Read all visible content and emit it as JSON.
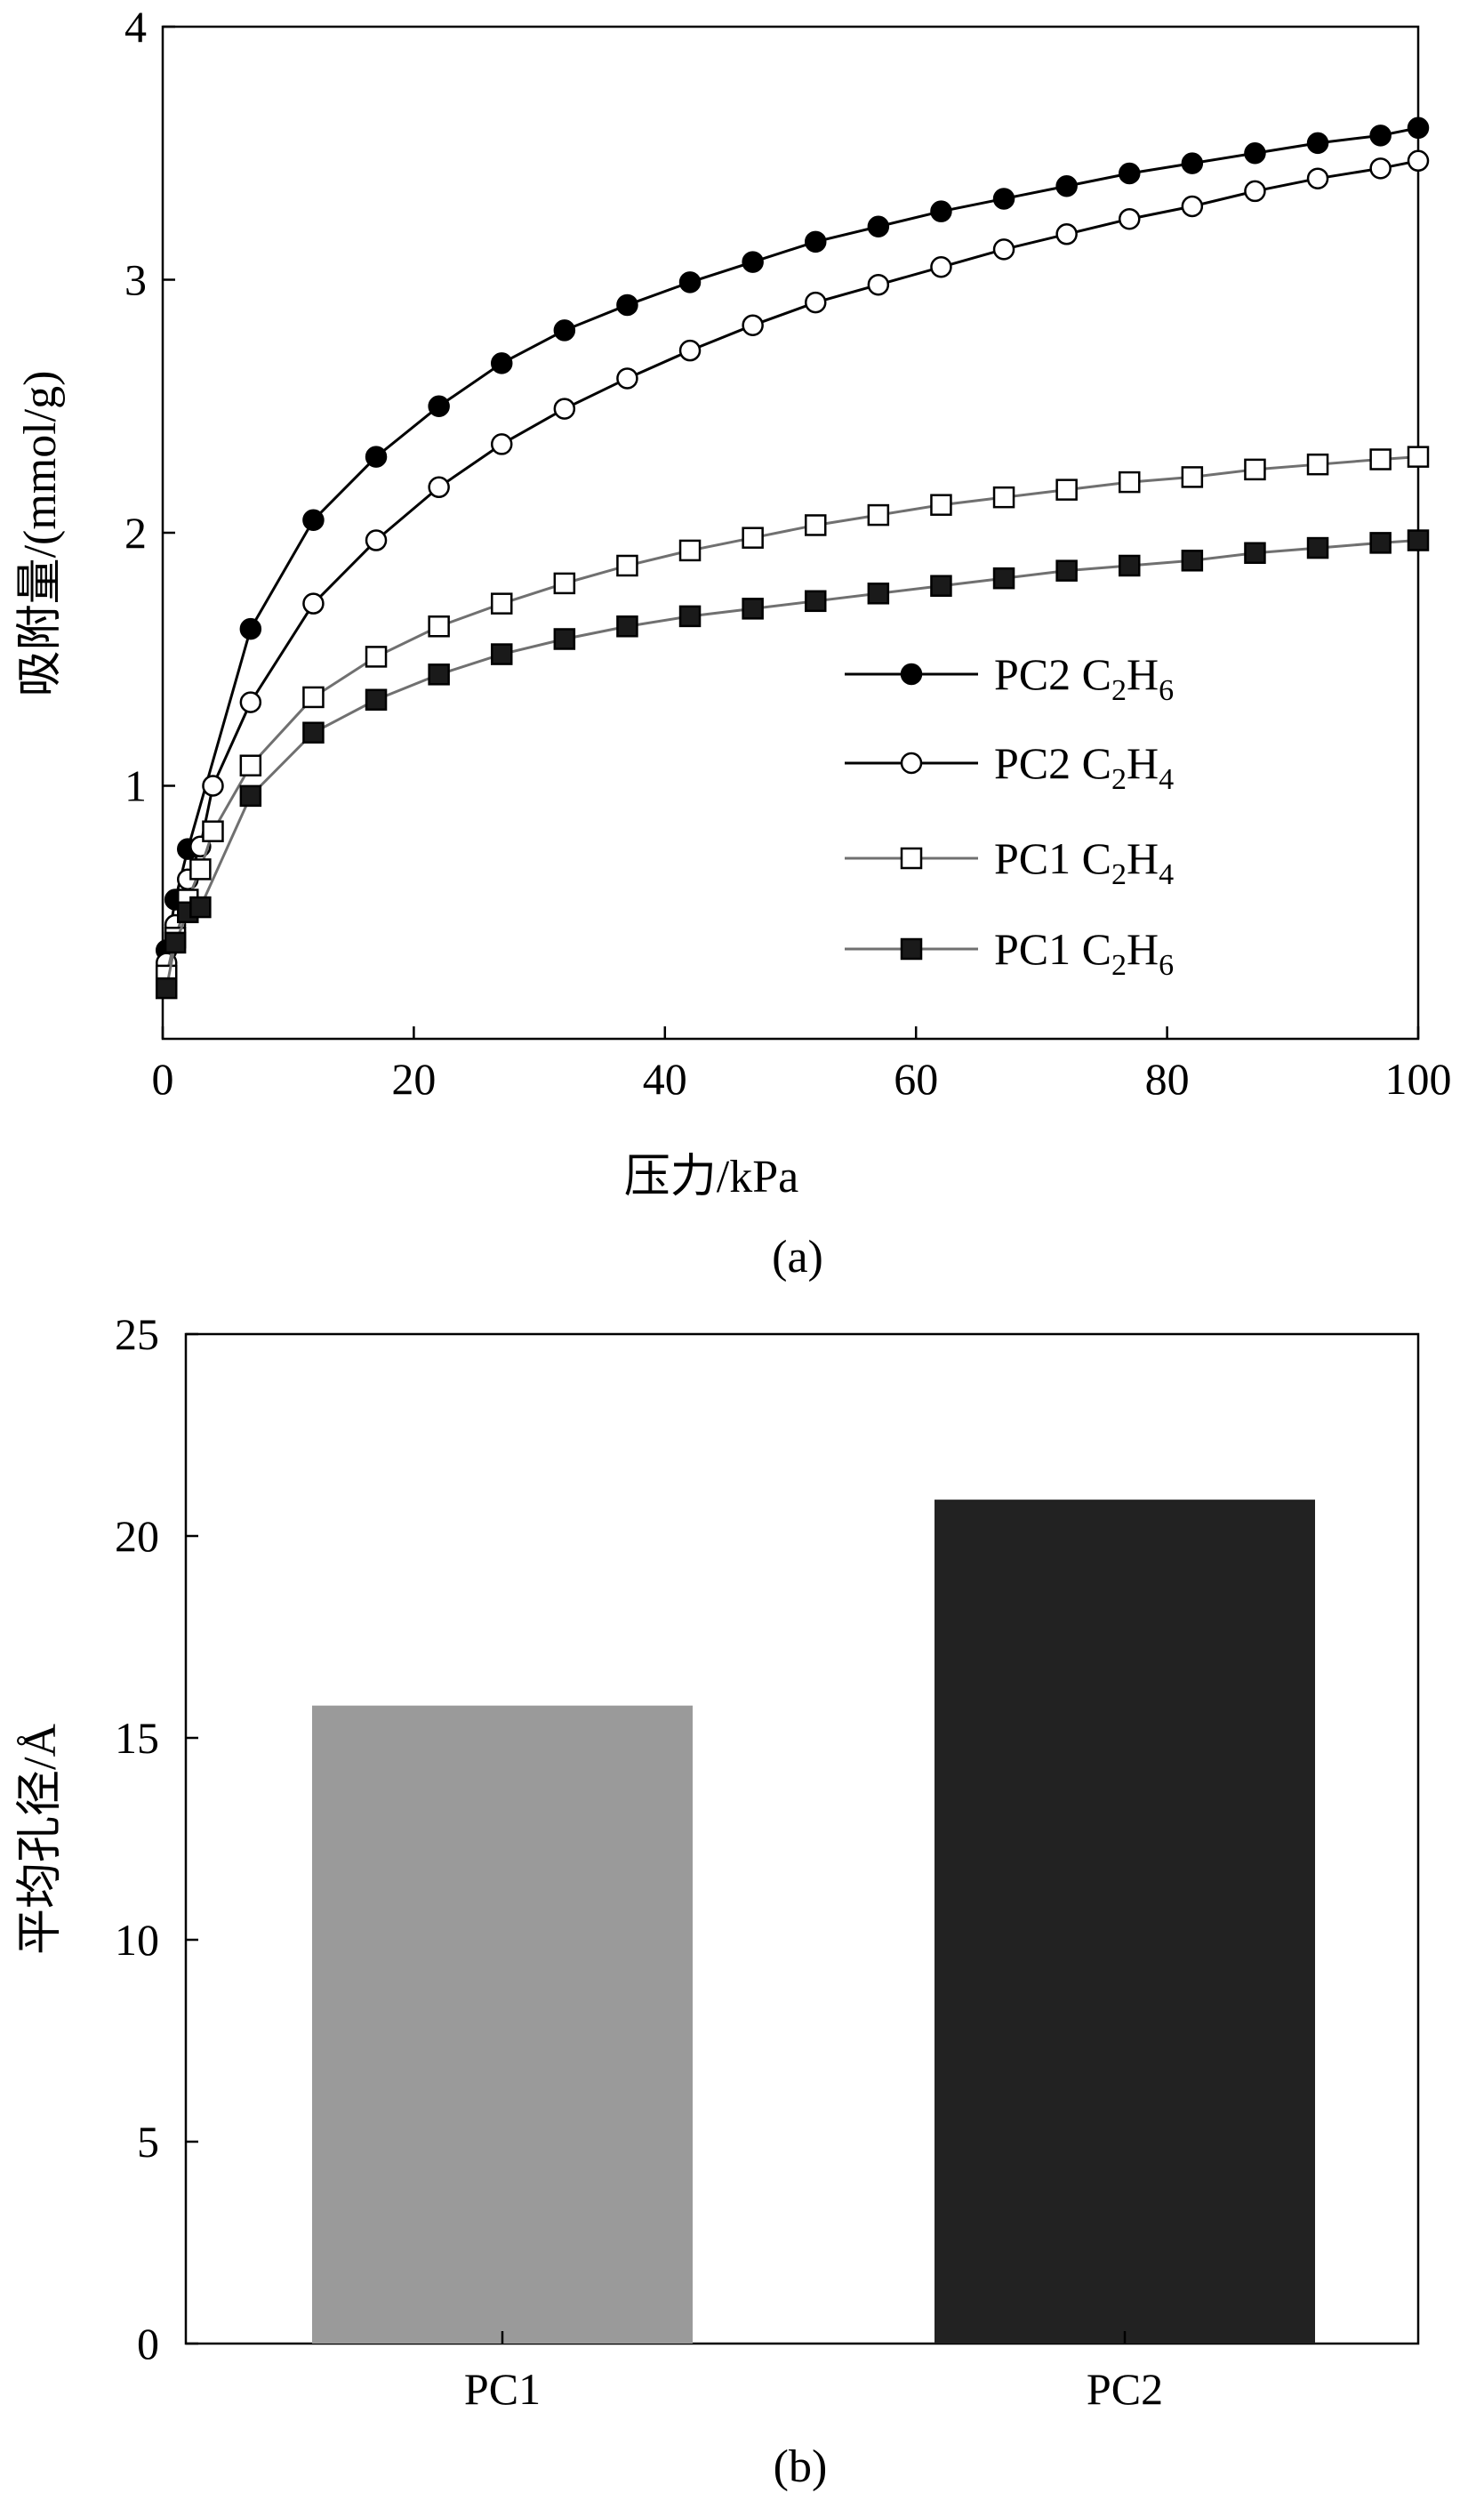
{
  "chart_data": [
    {
      "type": "line",
      "panel": "(a)",
      "xlabel": "压力/kPa",
      "ylabel": "吸附量/(mmol/g)",
      "xlim": [
        0,
        100
      ],
      "ylim": [
        0,
        4
      ],
      "xticks": [
        "0",
        "20",
        "40",
        "60",
        "80",
        "100"
      ],
      "yticks": [
        "1",
        "2",
        "3",
        "4"
      ],
      "series": [
        {
          "name": "PC2 C2H6",
          "label": {
            "pre": "PC2 C",
            "sub1": "2",
            "mid": "H",
            "sub2": "6"
          },
          "marker": "circle-filled",
          "line_color": "#000000",
          "marker_fill": "#000000",
          "x": [
            0.3,
            1,
            2,
            7,
            12,
            17,
            22,
            27,
            32,
            37,
            42,
            47,
            52,
            57,
            62,
            67,
            72,
            77,
            82,
            87,
            92,
            97,
            100
          ],
          "y": [
            0.35,
            0.55,
            0.75,
            1.62,
            2.05,
            2.3,
            2.5,
            2.67,
            2.8,
            2.9,
            2.99,
            3.07,
            3.15,
            3.21,
            3.27,
            3.32,
            3.37,
            3.42,
            3.46,
            3.5,
            3.54,
            3.57,
            3.6
          ]
        },
        {
          "name": "PC2 C2H4",
          "label": {
            "pre": "PC2 C",
            "sub1": "2",
            "mid": "H",
            "sub2": "4"
          },
          "marker": "circle-open",
          "line_color": "#000000",
          "marker_fill": "#ffffff",
          "x": [
            0.3,
            1,
            2,
            3,
            4,
            7,
            12,
            17,
            22,
            27,
            32,
            37,
            42,
            47,
            52,
            57,
            62,
            67,
            72,
            77,
            82,
            87,
            92,
            97,
            100
          ],
          "y": [
            0.3,
            0.45,
            0.63,
            0.76,
            1.0,
            1.33,
            1.72,
            1.97,
            2.18,
            2.35,
            2.49,
            2.61,
            2.72,
            2.82,
            2.91,
            2.98,
            3.05,
            3.12,
            3.18,
            3.24,
            3.29,
            3.35,
            3.4,
            3.44,
            3.47
          ]
        },
        {
          "name": "PC1 C2H4",
          "label": {
            "pre": "PC1 C",
            "sub1": "2",
            "mid": "H",
            "sub2": "4"
          },
          "marker": "square-open",
          "line_color": "#707070",
          "marker_fill": "#ffffff",
          "x": [
            0.3,
            1,
            2,
            3,
            4,
            7,
            12,
            17,
            22,
            27,
            32,
            37,
            42,
            47,
            52,
            57,
            62,
            67,
            72,
            77,
            82,
            87,
            92,
            97,
            100
          ],
          "y": [
            0.25,
            0.4,
            0.55,
            0.67,
            0.82,
            1.08,
            1.35,
            1.51,
            1.63,
            1.72,
            1.8,
            1.87,
            1.93,
            1.98,
            2.03,
            2.07,
            2.11,
            2.14,
            2.17,
            2.2,
            2.22,
            2.25,
            2.27,
            2.29,
            2.3
          ]
        },
        {
          "name": "PC1 C2H6",
          "label": {
            "pre": "PC1 C",
            "sub1": "2",
            "mid": "H",
            "sub2": "6"
          },
          "marker": "square-filled",
          "line_color": "#707070",
          "marker_fill": "#1a1a1a",
          "x": [
            0.3,
            1,
            2,
            3,
            7,
            12,
            17,
            22,
            27,
            32,
            37,
            42,
            47,
            52,
            57,
            62,
            67,
            72,
            77,
            82,
            87,
            92,
            97,
            100
          ],
          "y": [
            0.2,
            0.38,
            0.5,
            0.52,
            0.96,
            1.21,
            1.34,
            1.44,
            1.52,
            1.58,
            1.63,
            1.67,
            1.7,
            1.73,
            1.76,
            1.79,
            1.82,
            1.85,
            1.87,
            1.89,
            1.92,
            1.94,
            1.96,
            1.97
          ]
        }
      ],
      "legend_position": "lower-right",
      "caption": "(a)"
    },
    {
      "type": "bar",
      "panel": "(b)",
      "xlabel": "",
      "ylabel": "平均孔径/Å",
      "ylim": [
        0,
        25
      ],
      "yticks": [
        "0",
        "5",
        "10",
        "15",
        "20",
        "25"
      ],
      "categories": [
        "PC1",
        "PC2"
      ],
      "values": [
        15.8,
        20.9
      ],
      "colors": [
        "#9a9a9a",
        "#222222"
      ],
      "caption": "(b)"
    }
  ]
}
